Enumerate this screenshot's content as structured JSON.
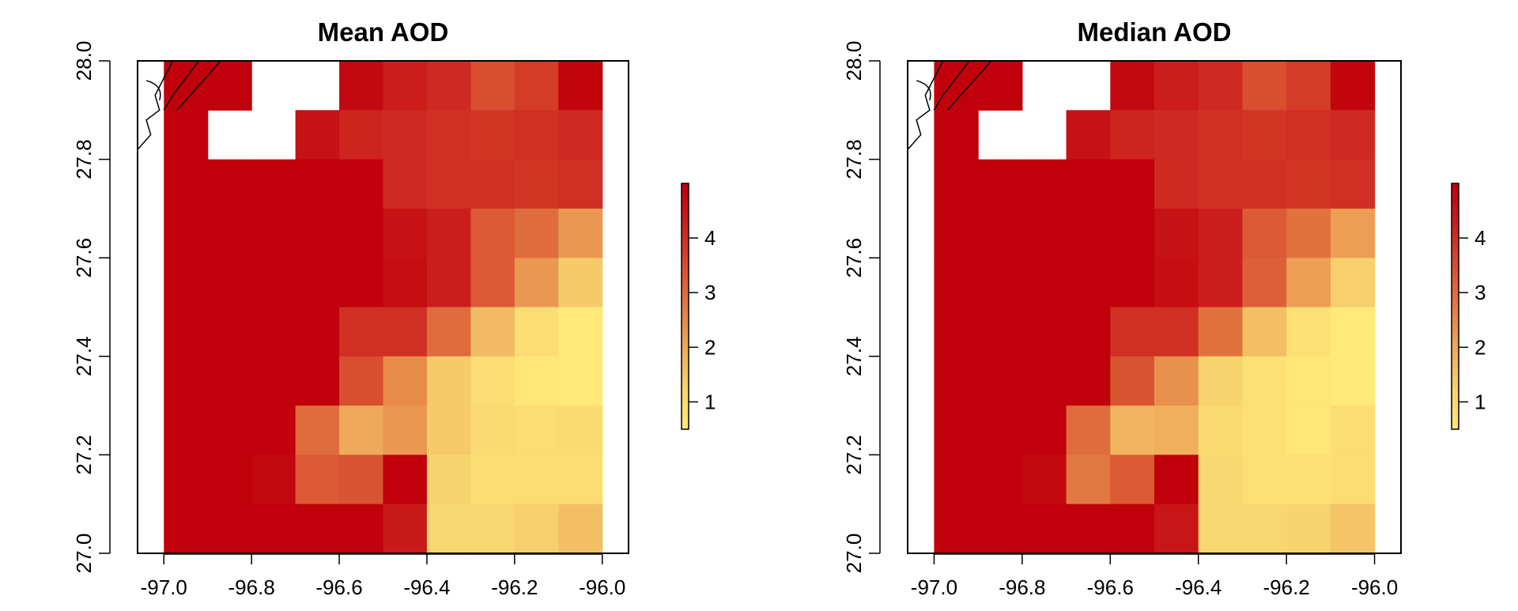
{
  "chart_data": [
    {
      "type": "heatmap",
      "title": "Mean AOD",
      "xlim": [
        -97.06,
        -95.94
      ],
      "ylim": [
        27.0,
        28.0
      ],
      "x_ticks": [
        -97.0,
        -96.8,
        -96.6,
        -96.4,
        -96.2,
        -96.0
      ],
      "x_tick_labels": [
        "-97.0",
        "-96.8",
        "-96.6",
        "-96.4",
        "-96.2",
        "-96.0"
      ],
      "y_ticks": [
        27.0,
        27.2,
        27.4,
        27.6,
        27.8,
        28.0
      ],
      "y_tick_labels": [
        "27.0",
        "27.2",
        "27.4",
        "27.6",
        "27.8",
        "28.0"
      ],
      "legend_ticks": [
        1,
        2,
        3,
        4
      ],
      "legend_tick_labels": [
        "1",
        "2",
        "3",
        "4"
      ],
      "legend_range": [
        0.5,
        5.0
      ],
      "legend_position": "right",
      "cell_size": 0.1,
      "x_centers": [
        -96.95,
        -96.85,
        -96.75,
        -96.65,
        -96.55,
        -96.45,
        -96.35,
        -96.25,
        -96.15,
        -96.05
      ],
      "y_centers": [
        27.95,
        27.85,
        27.75,
        27.65,
        27.55,
        27.45,
        27.35,
        27.25,
        27.15,
        27.05
      ],
      "values": [
        [
          5.0,
          5.0,
          null,
          null,
          4.8,
          4.3,
          4.1,
          3.5,
          3.8,
          4.9
        ],
        [
          5.0,
          null,
          null,
          4.6,
          4.2,
          4.1,
          4.0,
          3.9,
          4.0,
          4.1
        ],
        [
          5.0,
          5.0,
          5.0,
          5.0,
          5.0,
          4.1,
          4.0,
          4.0,
          3.9,
          4.0
        ],
        [
          5.0,
          5.0,
          5.0,
          5.0,
          5.0,
          4.6,
          4.3,
          3.3,
          3.0,
          2.3
        ],
        [
          5.0,
          5.0,
          5.0,
          5.0,
          5.0,
          4.7,
          4.3,
          3.3,
          2.3,
          1.4
        ],
        [
          5.0,
          5.0,
          5.0,
          5.0,
          4.0,
          4.0,
          3.0,
          1.7,
          0.9,
          0.5
        ],
        [
          5.0,
          5.0,
          5.0,
          5.0,
          3.5,
          2.5,
          1.4,
          0.9,
          0.6,
          0.5
        ],
        [
          5.0,
          5.0,
          5.0,
          3.0,
          2.0,
          2.3,
          1.4,
          1.0,
          0.9,
          1.0
        ],
        [
          5.0,
          5.0,
          4.8,
          3.3,
          3.4,
          5.0,
          1.2,
          0.9,
          0.9,
          0.9
        ],
        [
          5.0,
          5.0,
          5.0,
          5.0,
          5.0,
          4.4,
          1.1,
          1.1,
          1.3,
          1.6
        ]
      ]
    },
    {
      "type": "heatmap",
      "title": "Median AOD",
      "xlim": [
        -97.06,
        -95.94
      ],
      "ylim": [
        27.0,
        28.0
      ],
      "x_ticks": [
        -97.0,
        -96.8,
        -96.6,
        -96.4,
        -96.2,
        -96.0
      ],
      "x_tick_labels": [
        "-97.0",
        "-96.8",
        "-96.6",
        "-96.4",
        "-96.2",
        "-96.0"
      ],
      "y_ticks": [
        27.0,
        27.2,
        27.4,
        27.6,
        27.8,
        28.0
      ],
      "y_tick_labels": [
        "27.0",
        "27.2",
        "27.4",
        "27.6",
        "27.8",
        "28.0"
      ],
      "legend_ticks": [
        1,
        2,
        3,
        4
      ],
      "legend_tick_labels": [
        "1",
        "2",
        "3",
        "4"
      ],
      "legend_range": [
        0.5,
        5.0
      ],
      "legend_position": "right",
      "cell_size": 0.1,
      "x_centers": [
        -96.95,
        -96.85,
        -96.75,
        -96.65,
        -96.55,
        -96.45,
        -96.35,
        -96.25,
        -96.15,
        -96.05
      ],
      "y_centers": [
        27.95,
        27.85,
        27.75,
        27.65,
        27.55,
        27.45,
        27.35,
        27.25,
        27.15,
        27.05
      ],
      "values": [
        [
          5.0,
          5.0,
          null,
          null,
          4.8,
          4.3,
          4.1,
          3.5,
          3.8,
          4.9
        ],
        [
          5.0,
          null,
          null,
          4.6,
          4.2,
          4.1,
          4.0,
          3.9,
          4.0,
          4.1
        ],
        [
          5.0,
          5.0,
          5.0,
          5.0,
          5.0,
          4.1,
          4.0,
          4.0,
          3.9,
          4.0
        ],
        [
          5.0,
          5.0,
          5.0,
          5.0,
          5.0,
          4.6,
          4.3,
          3.3,
          2.9,
          2.2
        ],
        [
          5.0,
          5.0,
          5.0,
          5.0,
          5.0,
          4.7,
          4.3,
          3.2,
          2.2,
          1.3
        ],
        [
          5.0,
          5.0,
          5.0,
          5.0,
          4.0,
          4.0,
          2.9,
          1.6,
          0.8,
          0.5
        ],
        [
          5.0,
          5.0,
          5.0,
          5.0,
          3.4,
          2.4,
          1.2,
          0.8,
          0.6,
          0.5
        ],
        [
          5.0,
          5.0,
          5.0,
          3.0,
          1.8,
          1.9,
          1.0,
          0.8,
          0.6,
          0.9
        ],
        [
          5.0,
          5.0,
          4.8,
          2.8,
          3.3,
          5.0,
          1.1,
          0.8,
          0.8,
          0.9
        ],
        [
          5.0,
          5.0,
          5.0,
          5.0,
          5.0,
          4.5,
          1.1,
          1.1,
          1.2,
          1.5
        ]
      ]
    }
  ]
}
